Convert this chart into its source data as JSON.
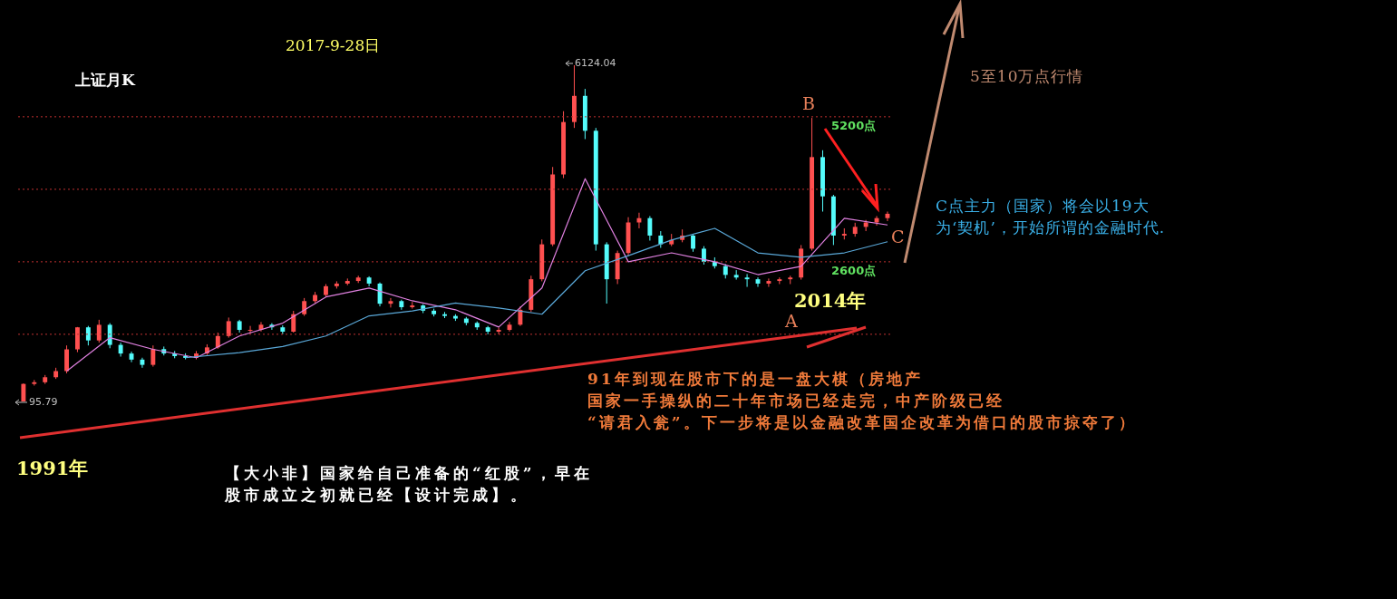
{
  "chart_data": {
    "type": "candlestick",
    "title": "上证月K",
    "subtitle": "2017-9-28日",
    "categories": [
      null,
      null,
      null,
      null,
      null,
      null,
      null,
      null,
      null,
      null,
      null,
      null,
      null,
      null,
      null,
      null,
      null,
      null,
      null,
      null,
      null,
      null,
      null,
      null,
      null,
      null,
      null,
      null,
      null,
      null,
      null,
      null,
      null,
      null,
      null,
      null,
      null,
      null,
      null,
      null,
      null,
      null,
      null,
      null,
      null,
      null,
      null,
      null,
      null,
      null,
      null,
      null,
      null,
      null,
      null,
      null,
      null,
      null,
      null,
      null,
      null,
      null,
      null,
      null,
      null,
      null,
      null,
      null,
      null,
      null,
      null,
      null,
      null,
      null,
      null,
      null,
      null,
      null,
      null,
      null,
      null
    ],
    "ohlc": [
      [
        96,
        420,
        95.79,
        410
      ],
      [
        410,
        480,
        380,
        440
      ],
      [
        440,
        570,
        410,
        530
      ],
      [
        530,
        700,
        500,
        640
      ],
      [
        640,
        1100,
        600,
        1030
      ],
      [
        1030,
        1430,
        980,
        1425
      ],
      [
        1425,
        1450,
        1100,
        1190
      ],
      [
        1190,
        1560,
        1150,
        1470
      ],
      [
        1470,
        1500,
        1050,
        1110
      ],
      [
        1110,
        1150,
        900,
        955
      ],
      [
        955,
        990,
        800,
        846
      ],
      [
        846,
        880,
        700,
        752
      ],
      [
        752,
        1100,
        720,
        1034
      ],
      [
        1034,
        1080,
        920,
        956
      ],
      [
        956,
        1000,
        870,
        909
      ],
      [
        909,
        960,
        850,
        877
      ],
      [
        877,
        1000,
        850,
        956
      ],
      [
        956,
        1120,
        930,
        1065
      ],
      [
        1065,
        1330,
        1040,
        1269
      ],
      [
        1269,
        1600,
        1240,
        1535
      ],
      [
        1535,
        1560,
        1330,
        1379
      ],
      [
        1379,
        1450,
        1320,
        1379
      ],
      [
        1379,
        1520,
        1350,
        1472
      ],
      [
        1472,
        1500,
        1380,
        1425
      ],
      [
        1425,
        1460,
        1300,
        1347
      ],
      [
        1347,
        1720,
        1330,
        1660
      ],
      [
        1660,
        1950,
        1630,
        1895
      ],
      [
        1895,
        2060,
        1860,
        2005
      ],
      [
        2005,
        2200,
        1980,
        2162
      ],
      [
        2162,
        2250,
        2120,
        2209
      ],
      [
        2209,
        2300,
        2180,
        2256
      ],
      [
        2256,
        2350,
        2220,
        2318
      ],
      [
        2318,
        2340,
        2160,
        2209
      ],
      [
        2209,
        2230,
        1800,
        1848
      ],
      [
        1848,
        1950,
        1780,
        1895
      ],
      [
        1895,
        1920,
        1740,
        1786
      ],
      [
        1786,
        1880,
        1760,
        1817
      ],
      [
        1817,
        1840,
        1680,
        1723
      ],
      [
        1723,
        1760,
        1620,
        1660
      ],
      [
        1660,
        1700,
        1590,
        1629
      ],
      [
        1629,
        1660,
        1540,
        1582
      ],
      [
        1582,
        1610,
        1460,
        1504
      ],
      [
        1504,
        1530,
        1380,
        1425
      ],
      [
        1425,
        1450,
        1300,
        1347
      ],
      [
        1347,
        1420,
        1300,
        1379
      ],
      [
        1379,
        1520,
        1350,
        1472
      ],
      [
        1472,
        1800,
        1450,
        1739
      ],
      [
        1739,
        2350,
        1700,
        2287
      ],
      [
        2287,
        3000,
        2250,
        2913
      ],
      [
        2913,
        4300,
        2880,
        4166
      ],
      [
        4166,
        5300,
        4100,
        5106
      ],
      [
        5106,
        6124.04,
        5000,
        5575
      ],
      [
        5575,
        5700,
        4800,
        4949
      ],
      [
        4949,
        5000,
        2800,
        2913
      ],
      [
        2913,
        2950,
        1850,
        2287
      ],
      [
        2287,
        2800,
        2200,
        2757
      ],
      [
        2757,
        3400,
        2700,
        3305
      ],
      [
        3305,
        3480,
        3200,
        3383
      ],
      [
        3383,
        3420,
        2980,
        3070
      ],
      [
        3070,
        3150,
        2850,
        2913
      ],
      [
        2913,
        3100,
        2880,
        2992
      ],
      [
        2992,
        3180,
        2950,
        3070
      ],
      [
        3070,
        3100,
        2780,
        2835
      ],
      [
        2835,
        2880,
        2550,
        2600
      ],
      [
        2600,
        2680,
        2480,
        2522
      ],
      [
        2522,
        2560,
        2300,
        2365
      ],
      [
        2365,
        2450,
        2280,
        2318
      ],
      [
        2318,
        2380,
        2150,
        2287
      ],
      [
        2287,
        2320,
        2150,
        2209
      ],
      [
        2209,
        2300,
        2150,
        2256
      ],
      [
        2256,
        2320,
        2200,
        2287
      ],
      [
        2287,
        2350,
        2200,
        2318
      ],
      [
        2318,
        2900,
        2280,
        2835
      ],
      [
        2835,
        5180,
        2800,
        4477
      ],
      [
        4477,
        4600,
        3500,
        3773
      ],
      [
        3773,
        3800,
        2900,
        3070
      ],
      [
        3070,
        3200,
        3000,
        3101
      ],
      [
        3101,
        3300,
        3050,
        3226
      ],
      [
        3226,
        3350,
        3150,
        3305
      ],
      [
        3305,
        3420,
        3250,
        3383
      ],
      [
        3383,
        3500,
        3330,
        3461
      ]
    ],
    "colors": [
      "#ff5050",
      "#ff5050",
      "#ff5050",
      "#ff5050",
      "#ff5050",
      "#ff5050",
      "#54fcfc",
      "#ff5050",
      "#54fcfc",
      "#54fcfc",
      "#54fcfc",
      "#54fcfc",
      "#ff5050",
      "#54fcfc",
      "#54fcfc",
      "#54fcfc",
      "#ff5050",
      "#ff5050",
      "#ff5050",
      "#ff5050",
      "#54fcfc",
      "#ff5050",
      "#ff5050",
      "#54fcfc",
      "#54fcfc",
      "#ff5050",
      "#ff5050",
      "#ff5050",
      "#ff5050",
      "#ff5050",
      "#ff5050",
      "#ff5050",
      "#54fcfc",
      "#54fcfc",
      "#ff5050",
      "#54fcfc",
      "#ff5050",
      "#54fcfc",
      "#54fcfc",
      "#54fcfc",
      "#54fcfc",
      "#54fcfc",
      "#54fcfc",
      "#54fcfc",
      "#ff5050",
      "#ff5050",
      "#ff5050",
      "#ff5050",
      "#ff5050",
      "#ff5050",
      "#ff5050",
      "#ff5050",
      "#54fcfc",
      "#54fcfc",
      "#54fcfc",
      "#ff5050",
      "#ff5050",
      "#ff5050",
      "#54fcfc",
      "#54fcfc",
      "#ff5050",
      "#ff5050",
      "#54fcfc",
      "#54fcfc",
      "#54fcfc",
      "#54fcfc",
      "#54fcfc",
      "#54fcfc",
      "#54fcfc",
      "#ff5050",
      "#ff5050",
      "#ff5050",
      "#ff5050",
      "#ff5050",
      "#54fcfc",
      "#54fcfc",
      "#ff5050",
      "#ff5050",
      "#ff5050",
      "#ff5050",
      "#ff5050"
    ],
    "series": [
      {
        "type": "line",
        "color": "#e080e0",
        "values": [
          null,
          null,
          null,
          null,
          640,
          null,
          null,
          null,
          1240,
          null,
          null,
          null,
          1030,
          null,
          null,
          null,
          880,
          null,
          null,
          null,
          1270,
          null,
          null,
          null,
          1500,
          null,
          null,
          null,
          1970,
          null,
          null,
          null,
          2130,
          null,
          null,
          null,
          1900,
          null,
          null,
          null,
          1740,
          null,
          null,
          null,
          1430,
          null,
          null,
          null,
          2130,
          null,
          null,
          null,
          4090,
          null,
          null,
          null,
          2600,
          null,
          null,
          null,
          2760,
          null,
          null,
          null,
          2600,
          null,
          null,
          null,
          2370,
          null,
          null,
          null,
          2520,
          null,
          null,
          null,
          3380,
          null,
          null,
          null,
          3260
        ]
      },
      {
        "type": "line",
        "color": "#5aa8d8",
        "values": [
          null,
          null,
          null,
          null,
          null,
          null,
          null,
          null,
          null,
          null,
          null,
          null,
          null,
          null,
          null,
          880,
          null,
          null,
          null,
          null,
          970,
          null,
          null,
          null,
          1080,
          null,
          null,
          null,
          1270,
          null,
          null,
          null,
          1630,
          null,
          null,
          null,
          1720,
          null,
          null,
          null,
          1860,
          null,
          null,
          null,
          1770,
          null,
          null,
          null,
          1660,
          null,
          null,
          null,
          2440,
          null,
          null,
          null,
          2710,
          null,
          null,
          null,
          2990,
          null,
          null,
          null,
          3200,
          null,
          null,
          null,
          2760,
          null,
          null,
          null,
          2680,
          null,
          null,
          null,
          2760,
          null,
          null,
          null,
          2960
        ]
      }
    ],
    "ref_lines": [
      {
        "axis": "y",
        "value": 1300,
        "color": "#c03030",
        "line_style": "dotted"
      },
      {
        "axis": "y",
        "value": 2600,
        "label": "2600点",
        "color": "#c03030",
        "line_style": "dotted"
      },
      {
        "axis": "y",
        "value": 3900,
        "color": "#c03030",
        "line_style": "dotted"
      },
      {
        "axis": "y",
        "value": 5200,
        "label": "5200点",
        "color": "#c03030",
        "line_style": "dotted"
      }
    ],
    "annotations": [
      "6124.04",
      "95.79",
      "B",
      "A",
      "C",
      "2014年",
      "1991年",
      "5至10万点行情",
      "C点主力（国家）将会以19大为‘契机’，开始所谓的金融时代.",
      "91年到现在股市下的是一盘大棋（房地产国家一手操纵的二十年市场已经走完，中产阶级已经“请君入瓮”。下一步将是以金融改革国企改革为借口的股市掠夺了）",
      "【大小非】国家给自己准备的“红股”，早在股市成立之初就已经【设计完成】。"
    ]
  }
}
